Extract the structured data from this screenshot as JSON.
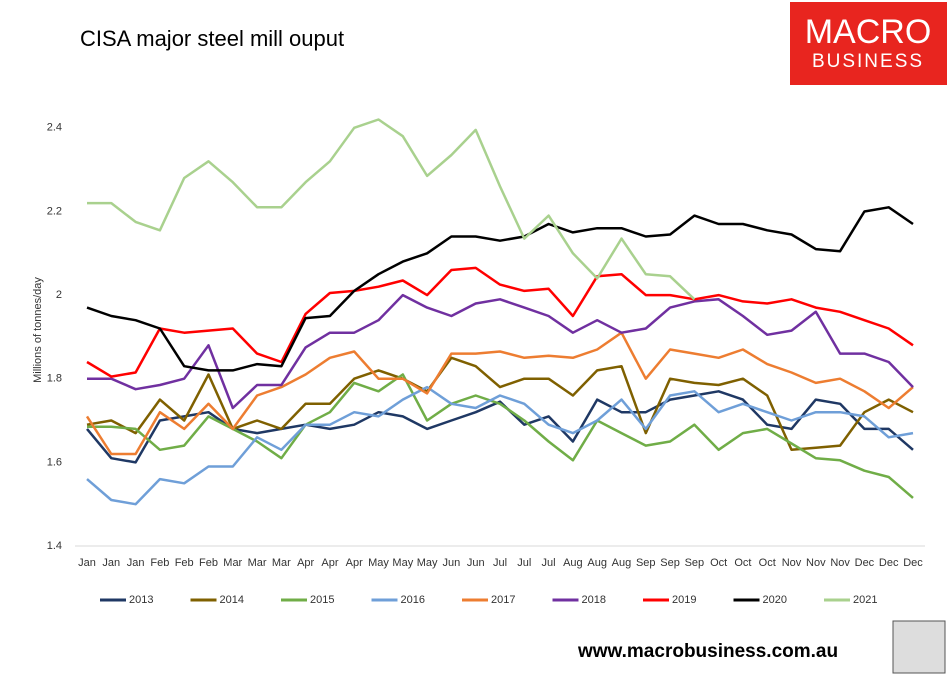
{
  "chart_data": {
    "type": "line",
    "title": "CISA major steel mill ouput",
    "y_label": "Millions of tonnes/day",
    "logo": [
      "MACRO",
      "BUSINESS"
    ],
    "footer": "www.macrobusiness.com.au",
    "categories": [
      "Jan",
      "Jan",
      "Jan",
      "Feb",
      "Feb",
      "Feb",
      "Mar",
      "Mar",
      "Mar",
      "Apr",
      "Apr",
      "Apr",
      "May",
      "May",
      "May",
      "Jun",
      "Jun",
      "Jul",
      "Jul",
      "Jul",
      "Aug",
      "Aug",
      "Aug",
      "Sep",
      "Sep",
      "Sep",
      "Oct",
      "Oct",
      "Oct",
      "Nov",
      "Nov",
      "Nov",
      "Dec",
      "Dec",
      "Dec"
    ],
    "ylim": [
      1.4,
      2.5
    ],
    "yticks": [
      1.4,
      1.6,
      1.8,
      2,
      2.2,
      2.4
    ],
    "grid": false,
    "legend": "bottom",
    "series": [
      {
        "name": "2013",
        "color": "#1f3864",
        "values": [
          1.68,
          1.61,
          1.6,
          1.7,
          1.71,
          1.72,
          1.68,
          1.67,
          1.68,
          1.69,
          1.68,
          1.69,
          1.72,
          1.71,
          1.68,
          1.7,
          1.72,
          1.745,
          1.69,
          1.71,
          1.65,
          1.75,
          1.72,
          1.72,
          1.75,
          1.76,
          1.77,
          1.75,
          1.69,
          1.68,
          1.75,
          1.74,
          1.68,
          1.68,
          1.63
        ]
      },
      {
        "name": "2014",
        "color": "#7f6000",
        "values": [
          1.69,
          1.7,
          1.67,
          1.75,
          1.7,
          1.81,
          1.68,
          1.7,
          1.68,
          1.74,
          1.74,
          1.8,
          1.82,
          1.8,
          1.77,
          1.85,
          1.83,
          1.78,
          1.8,
          1.8,
          1.76,
          1.82,
          1.83,
          1.67,
          1.8,
          1.79,
          1.785,
          1.8,
          1.76,
          1.63,
          1.635,
          1.64,
          1.72,
          1.75,
          1.72
        ]
      },
      {
        "name": "2015",
        "color": "#70ad47",
        "values": [
          1.685,
          1.685,
          1.68,
          1.63,
          1.64,
          1.71,
          1.68,
          1.65,
          1.61,
          1.69,
          1.72,
          1.79,
          1.77,
          1.81,
          1.7,
          1.74,
          1.76,
          1.74,
          1.7,
          1.65,
          1.605,
          1.7,
          1.67,
          1.64,
          1.65,
          1.69,
          1.63,
          1.67,
          1.68,
          1.645,
          1.61,
          1.605,
          1.58,
          1.565,
          1.515
        ]
      },
      {
        "name": "2016",
        "color": "#6f9fd8",
        "values": [
          1.56,
          1.51,
          1.5,
          1.56,
          1.55,
          1.59,
          1.59,
          1.66,
          1.63,
          1.69,
          1.69,
          1.72,
          1.71,
          1.75,
          1.78,
          1.74,
          1.73,
          1.76,
          1.74,
          1.69,
          1.67,
          1.7,
          1.75,
          1.68,
          1.76,
          1.77,
          1.72,
          1.74,
          1.72,
          1.7,
          1.72,
          1.72,
          1.71,
          1.66,
          1.67
        ]
      },
      {
        "name": "2017",
        "color": "#ed7d31",
        "values": [
          1.71,
          1.62,
          1.62,
          1.72,
          1.68,
          1.74,
          1.68,
          1.76,
          1.78,
          1.81,
          1.85,
          1.865,
          1.8,
          1.8,
          1.765,
          1.86,
          1.86,
          1.865,
          1.85,
          1.855,
          1.85,
          1.87,
          1.91,
          1.8,
          1.87,
          1.86,
          1.85,
          1.87,
          1.835,
          1.815,
          1.79,
          1.8,
          1.77,
          1.73,
          1.78
        ]
      },
      {
        "name": "2018",
        "color": "#7030a0",
        "values": [
          1.8,
          1.8,
          1.775,
          1.785,
          1.8,
          1.88,
          1.73,
          1.785,
          1.785,
          1.875,
          1.91,
          1.91,
          1.94,
          2.0,
          1.97,
          1.95,
          1.98,
          1.99,
          1.97,
          1.95,
          1.91,
          1.94,
          1.91,
          1.92,
          1.97,
          1.985,
          1.99,
          1.95,
          1.905,
          1.915,
          1.96,
          1.86,
          1.86,
          1.84,
          1.78
        ]
      },
      {
        "name": "2019",
        "color": "#ff0000",
        "values": [
          1.84,
          1.805,
          1.815,
          1.92,
          1.91,
          1.915,
          1.92,
          1.86,
          1.84,
          1.955,
          2.005,
          2.01,
          2.02,
          2.035,
          2.0,
          2.06,
          2.065,
          2.025,
          2.01,
          2.015,
          1.95,
          2.045,
          2.05,
          2.0,
          2.0,
          1.99,
          2.0,
          1.985,
          1.98,
          1.99,
          1.97,
          1.96,
          1.94,
          1.92,
          1.88
        ]
      },
      {
        "name": "2020",
        "color": "#000000",
        "values": [
          1.97,
          1.95,
          1.94,
          1.92,
          1.83,
          1.82,
          1.82,
          1.835,
          1.83,
          1.945,
          1.95,
          2.01,
          2.05,
          2.08,
          2.1,
          2.14,
          2.14,
          2.13,
          2.14,
          2.17,
          2.15,
          2.16,
          2.16,
          2.14,
          2.145,
          2.19,
          2.17,
          2.17,
          2.155,
          2.145,
          2.11,
          2.105,
          2.2,
          2.21,
          2.17
        ]
      },
      {
        "name": "2021",
        "color": "#a9d18e",
        "values": [
          2.22,
          2.22,
          2.175,
          2.155,
          2.28,
          2.32,
          2.27,
          2.21,
          2.21,
          2.27,
          2.32,
          2.4,
          2.42,
          2.38,
          2.285,
          2.335,
          2.395,
          2.26,
          2.135,
          2.19,
          2.1,
          2.04,
          2.135,
          2.05,
          2.045,
          1.99,
          null,
          null,
          null,
          null,
          null,
          null,
          null,
          null,
          null
        ]
      }
    ]
  }
}
